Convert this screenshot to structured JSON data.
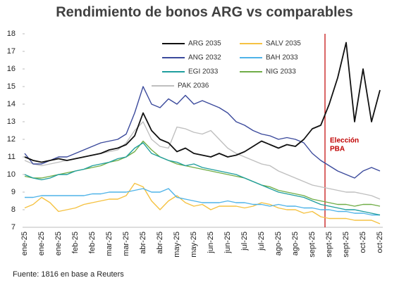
{
  "chart_data": {
    "type": "line",
    "title": "Rendimiento de bonos ARG vs comparables",
    "source": "Fuente: 1816 en base a Reuters",
    "categories": [
      "ene-25",
      null,
      "ene-25",
      null,
      "ene-25",
      null,
      "feb-25",
      null,
      "feb-25",
      null,
      "mar-25",
      null,
      "mar-25",
      null,
      "abr-25",
      null,
      "abr-25",
      null,
      "may-25",
      null,
      "may-25",
      null,
      "jun-25",
      null,
      "jun-25",
      null,
      "jul-25",
      null,
      "jul-25",
      null,
      "ago-25",
      null,
      "ago-25",
      null,
      "sept-25",
      null,
      "sept-25",
      null,
      "sept-25",
      null,
      "oct-25",
      null,
      "oct-25"
    ],
    "ylim": [
      7,
      18
    ],
    "yticks": [
      7,
      8,
      9,
      10,
      11,
      12,
      13,
      14,
      15,
      16,
      17,
      18
    ],
    "annotation": {
      "text": [
        "Elección",
        "PBA"
      ],
      "x": 35.5,
      "color": "#c00000"
    },
    "series": [
      {
        "name": "ARG 2035",
        "color": "#111111",
        "values": [
          11.0,
          10.8,
          10.7,
          10.8,
          10.9,
          10.8,
          10.9,
          11.0,
          11.1,
          11.2,
          11.4,
          11.5,
          11.7,
          12.2,
          13.5,
          12.5,
          12.0,
          11.8,
          11.3,
          11.5,
          11.2,
          11.1,
          11.0,
          11.2,
          11.0,
          11.1,
          11.3,
          11.6,
          11.9,
          11.7,
          11.5,
          11.7,
          11.6,
          12.0,
          12.6,
          12.8,
          14.0,
          15.5,
          17.5,
          13.0,
          16.0,
          13.0,
          14.8
        ]
      },
      {
        "name": "SALV 2035",
        "color": "#f5c242",
        "values": [
          8.1,
          8.3,
          8.7,
          8.4,
          7.9,
          8.0,
          8.1,
          8.3,
          8.4,
          8.5,
          8.6,
          8.6,
          8.8,
          9.5,
          9.3,
          8.5,
          8.0,
          8.5,
          8.8,
          8.4,
          8.2,
          8.3,
          8.0,
          8.2,
          8.2,
          8.2,
          8.1,
          8.2,
          8.4,
          8.3,
          8.1,
          8.0,
          8.0,
          7.8,
          7.9,
          7.6,
          7.5,
          7.5,
          7.5,
          7.4,
          7.4,
          7.4,
          7.2
        ]
      },
      {
        "name": "ANG 2032",
        "color": "#3b4a9c",
        "values": [
          11.2,
          10.6,
          10.6,
          10.8,
          11.0,
          11.0,
          11.2,
          11.4,
          11.6,
          11.8,
          11.9,
          12.0,
          12.3,
          13.5,
          15.0,
          14.0,
          13.8,
          14.3,
          14.0,
          14.5,
          14.0,
          14.2,
          14.0,
          13.8,
          13.5,
          13.0,
          12.8,
          12.5,
          12.3,
          12.2,
          12.0,
          12.1,
          12.0,
          11.8,
          11.2,
          10.8,
          10.5,
          10.2,
          10.0,
          9.8,
          10.2,
          10.4,
          10.2
        ]
      },
      {
        "name": "BAH 2033",
        "color": "#4fb3e8",
        "values": [
          8.7,
          8.7,
          8.8,
          8.8,
          8.8,
          8.8,
          8.8,
          8.8,
          8.9,
          8.9,
          9.0,
          9.0,
          9.0,
          9.1,
          9.2,
          9.0,
          9.0,
          9.2,
          8.7,
          8.6,
          8.5,
          8.4,
          8.4,
          8.4,
          8.5,
          8.4,
          8.4,
          8.3,
          8.3,
          8.2,
          8.3,
          8.2,
          8.2,
          8.1,
          8.1,
          8.0,
          8.0,
          7.9,
          7.9,
          7.8,
          7.8,
          7.7,
          7.7
        ]
      },
      {
        "name": "EGI 2033",
        "color": "#1f9e9e",
        "values": [
          10.0,
          9.8,
          9.7,
          9.8,
          10.0,
          10.0,
          10.2,
          10.3,
          10.5,
          10.6,
          10.7,
          10.9,
          11.0,
          11.5,
          11.8,
          11.2,
          11.0,
          10.8,
          10.7,
          10.5,
          10.6,
          10.4,
          10.3,
          10.2,
          10.1,
          10.0,
          9.8,
          9.6,
          9.4,
          9.2,
          9.0,
          8.9,
          8.8,
          8.7,
          8.5,
          8.3,
          8.2,
          8.1,
          8.0,
          8.0,
          7.9,
          7.8,
          7.7
        ]
      },
      {
        "name": "NIG 2033",
        "color": "#70ad47",
        "values": [
          9.9,
          9.8,
          9.8,
          9.9,
          10.0,
          10.1,
          10.2,
          10.3,
          10.4,
          10.5,
          10.7,
          10.8,
          11.0,
          11.3,
          11.9,
          11.4,
          11.0,
          10.8,
          10.6,
          10.5,
          10.4,
          10.3,
          10.2,
          10.1,
          10.0,
          9.9,
          9.8,
          9.6,
          9.4,
          9.3,
          9.1,
          9.0,
          8.9,
          8.8,
          8.6,
          8.5,
          8.4,
          8.3,
          8.3,
          8.2,
          8.3,
          8.3,
          8.2
        ]
      },
      {
        "name": "PAK 2036",
        "color": "#bfbfbf",
        "values": [
          10.8,
          10.6,
          10.5,
          10.6,
          10.7,
          10.8,
          10.9,
          11.0,
          11.1,
          11.2,
          11.3,
          11.4,
          11.8,
          12.5,
          13.0,
          12.0,
          11.6,
          11.5,
          12.7,
          12.6,
          12.4,
          12.3,
          12.5,
          12.0,
          11.5,
          11.2,
          11.0,
          10.8,
          10.6,
          10.5,
          10.2,
          10.0,
          9.8,
          9.6,
          9.4,
          9.3,
          9.2,
          9.1,
          9.0,
          9.0,
          8.9,
          8.8,
          8.6
        ]
      }
    ]
  }
}
